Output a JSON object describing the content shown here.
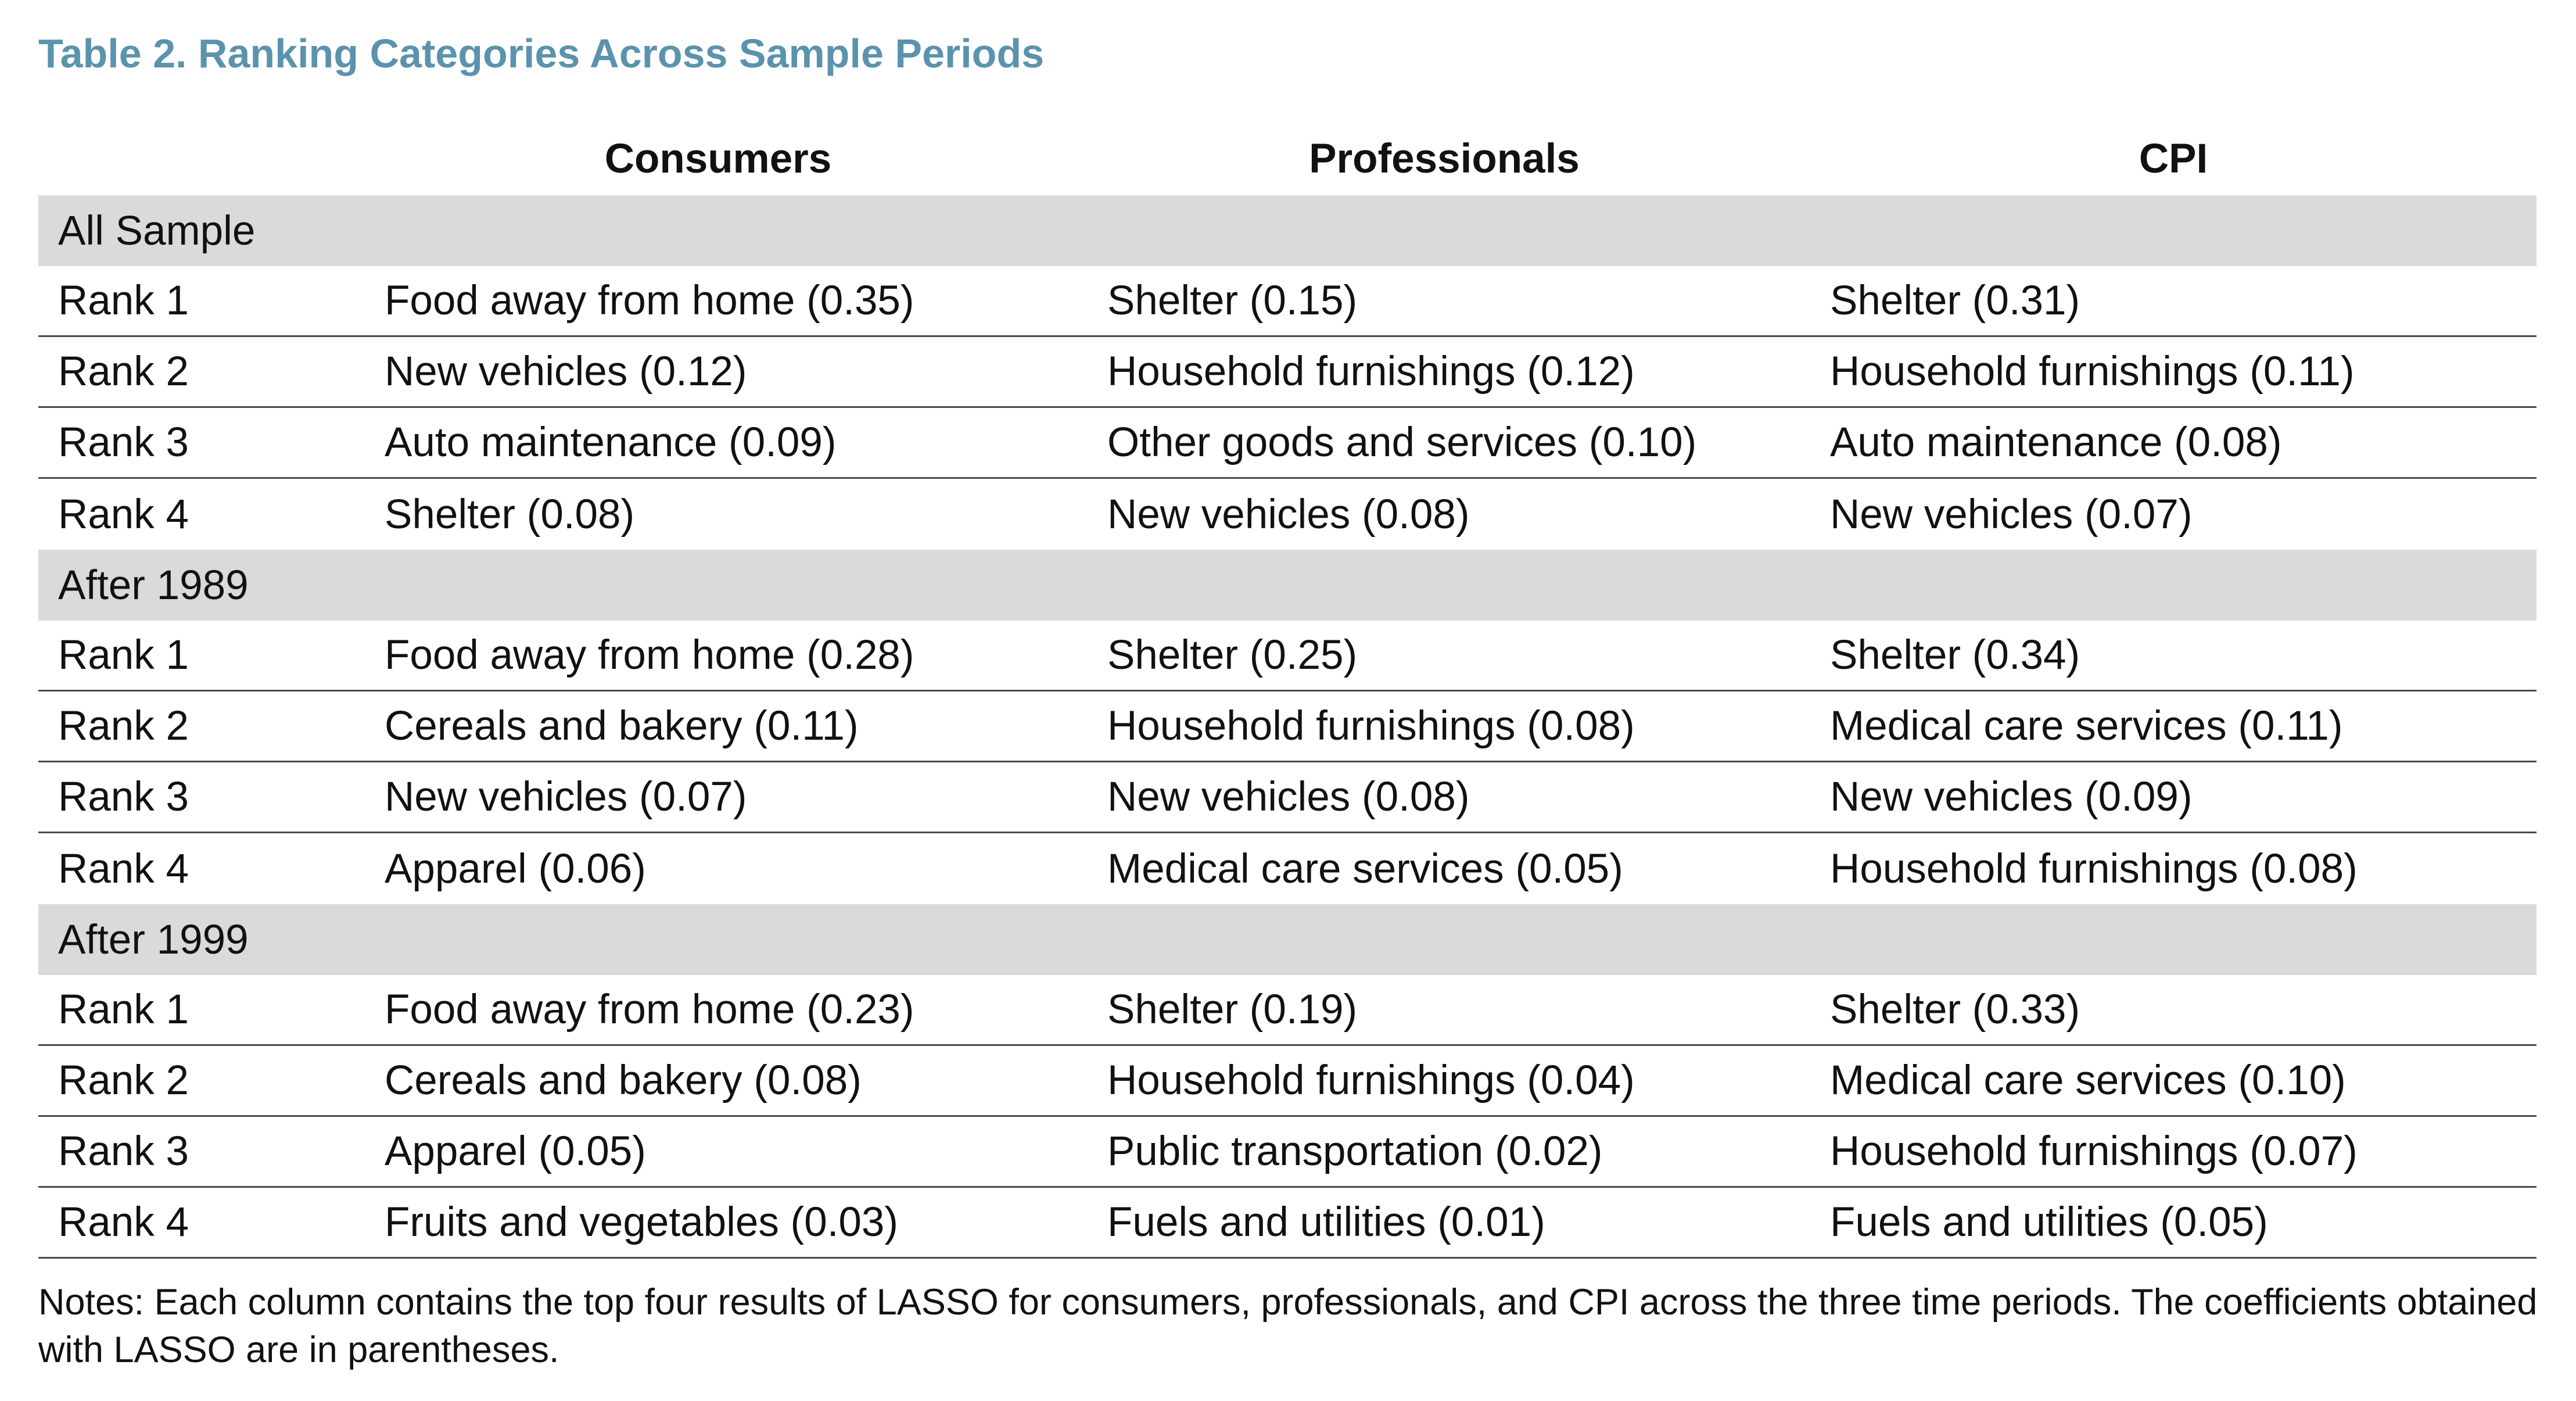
{
  "title": "Table 2. Ranking Categories Across Sample Periods",
  "columns": [
    "Consumers",
    "Professionals",
    "CPI"
  ],
  "sections": [
    {
      "name": "All Sample",
      "rows": [
        {
          "rank": "Rank 1",
          "consumers": "Food away from home (0.35)",
          "professionals": "Shelter (0.15)",
          "cpi": "Shelter (0.31)"
        },
        {
          "rank": "Rank 2",
          "consumers": "New vehicles (0.12)",
          "professionals": "Household furnishings (0.12)",
          "cpi": "Household furnishings (0.11)"
        },
        {
          "rank": "Rank 3",
          "consumers": "Auto maintenance (0.09)",
          "professionals": "Other goods and services (0.10)",
          "cpi": "Auto maintenance (0.08)"
        },
        {
          "rank": "Rank 4",
          "consumers": "Shelter (0.08)",
          "professionals": "New vehicles (0.08)",
          "cpi": "New vehicles (0.07)"
        }
      ]
    },
    {
      "name": "After 1989",
      "rows": [
        {
          "rank": "Rank 1",
          "consumers": "Food away from home (0.28)",
          "professionals": "Shelter (0.25)",
          "cpi": "Shelter (0.34)"
        },
        {
          "rank": "Rank 2",
          "consumers": "Cereals and bakery (0.11)",
          "professionals": "Household furnishings (0.08)",
          "cpi": "Medical care services (0.11)"
        },
        {
          "rank": "Rank 3",
          "consumers": "New vehicles (0.07)",
          "professionals": "New vehicles (0.08)",
          "cpi": "New vehicles (0.09)"
        },
        {
          "rank": "Rank 4",
          "consumers": "Apparel (0.06)",
          "professionals": "Medical care services (0.05)",
          "cpi": "Household furnishings (0.08)"
        }
      ]
    },
    {
      "name": "After 1999",
      "rows": [
        {
          "rank": "Rank 1",
          "consumers": "Food away from home (0.23)",
          "professionals": "Shelter (0.19)",
          "cpi": "Shelter (0.33)"
        },
        {
          "rank": "Rank 2",
          "consumers": "Cereals and bakery (0.08)",
          "professionals": "Household furnishings (0.04)",
          "cpi": "Medical care services (0.10)"
        },
        {
          "rank": "Rank 3",
          "consumers": "Apparel (0.05)",
          "professionals": "Public transportation (0.02)",
          "cpi": "Household furnishings (0.07)"
        },
        {
          "rank": "Rank 4",
          "consumers": "Fruits and vegetables (0.03)",
          "professionals": "Fuels and utilities (0.01)",
          "cpi": "Fuels and utilities (0.05)"
        }
      ]
    }
  ],
  "notes": "Notes: Each column contains the top four results of LASSO for consumers, professionals, and CPI across the three time periods. The coefficients obtained with LASSO are in parentheses."
}
